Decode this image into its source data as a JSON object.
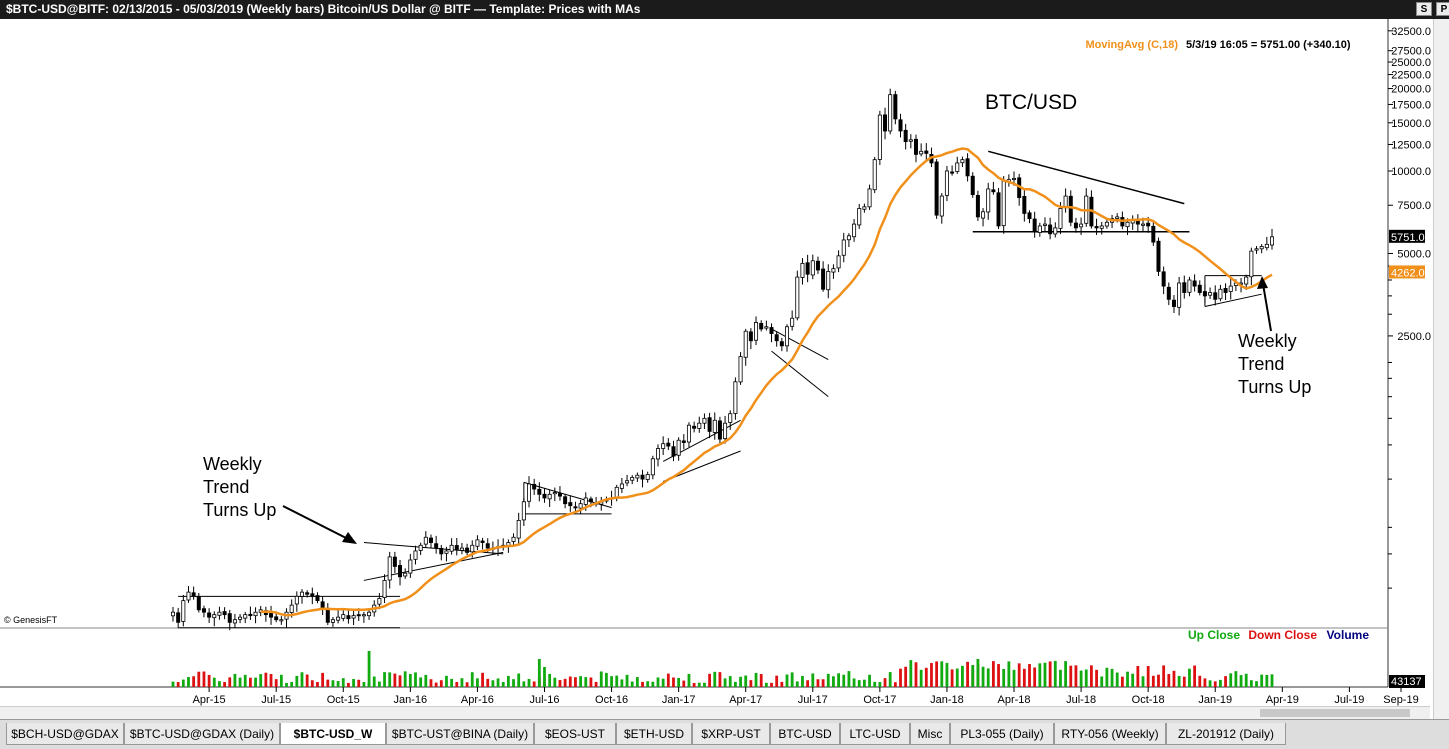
{
  "window": {
    "title": "$BTC-USD@BITF:  02/13/2015 - 05/03/2019  (Weekly bars)   Bitcoin/US Dollar @ BITF  —  Template: Prices with MAs",
    "btn_s": "S",
    "btn_p": "P"
  },
  "chart_data": {
    "type": "candlestick",
    "symbol_label": "BTC/USD",
    "scale": "log",
    "ylim": [
      220,
      35000
    ],
    "y_ticks": [
      32500,
      27500,
      25000,
      22500,
      20000,
      17500,
      15000,
      12500,
      10000,
      7500,
      5000,
      2500
    ],
    "y_tick_labels": [
      "32500.0",
      "27500.0",
      "25000.0",
      "22500.0",
      "20000.0",
      "17500.0",
      "15000.0",
      "12500.0",
      "10000.0",
      "7500.0",
      "5000.0",
      "2500.0"
    ],
    "x_tick_labels": [
      "Apr-15",
      "Jul-15",
      "Oct-15",
      "Jan-16",
      "Apr-16",
      "Jul-16",
      "Oct-16",
      "Jan-17",
      "Apr-17",
      "Jul-17",
      "Oct-17",
      "Jan-18",
      "Apr-18",
      "Jul-18",
      "Oct-18",
      "Jan-19",
      "Apr-19",
      "Jul-19",
      "Sep-19"
    ],
    "ma_legend": "MovingAvg (C,18)",
    "last_info": "5/3/19 16:05 = 5751.00 (+340.10)",
    "last_price": "5751.00",
    "ma_value": "4262.02",
    "volume_value": "43137",
    "volume_legend": [
      "Up Close",
      "Down Close",
      "Volume"
    ],
    "close_series": [
      245,
      225,
      270,
      290,
      280,
      250,
      245,
      235,
      240,
      245,
      240,
      225,
      230,
      235,
      240,
      238,
      245,
      250,
      240,
      235,
      230,
      230,
      245,
      260,
      280,
      290,
      285,
      280,
      270,
      255,
      225,
      230,
      235,
      240,
      232,
      238,
      240,
      240,
      245,
      260,
      275,
      320,
      390,
      360,
      330,
      340,
      380,
      410,
      430,
      460,
      440,
      420,
      400,
      410,
      430,
      415,
      420,
      405,
      430,
      450,
      440,
      420,
      420,
      425,
      430,
      440,
      460,
      530,
      620,
      720,
      690,
      660,
      640,
      660,
      670,
      650,
      610,
      600,
      590,
      610,
      640,
      620,
      610,
      620,
      630,
      640,
      700,
      720,
      740,
      760,
      775,
      750,
      780,
      890,
      970,
      1010,
      990,
      910,
      1040,
      1020,
      1180,
      1150,
      1200,
      1250,
      1120,
      1230,
      1050,
      1200,
      1300,
      1700,
      2100,
      2600,
      2400,
      2800,
      2650,
      2700,
      2550,
      2400,
      2300,
      2700,
      2900,
      4100,
      4600,
      4200,
      4700,
      4350,
      3700,
      4300,
      4400,
      4900,
      5600,
      5800,
      6400,
      7300,
      7400,
      8600,
      11000,
      16000,
      14000,
      19000,
      15500,
      14000,
      12800,
      13000,
      11500,
      11800,
      11600,
      10700,
      6900,
      8100,
      10000,
      9900,
      10700,
      11000,
      9600,
      8200,
      6800,
      7100,
      8600,
      8400,
      6300,
      9200,
      9300,
      9400,
      8000,
      7000,
      6700,
      6000,
      6300,
      6400,
      5900,
      6200,
      7300,
      8100,
      6500,
      6200,
      6400,
      8100,
      6300,
      6200,
      6300,
      6500,
      6700,
      6800,
      6300,
      6500,
      6600,
      6400,
      6400,
      6300,
      5500,
      4300,
      3800,
      3400,
      3200,
      3900,
      3600,
      4000,
      3800,
      3600,
      3500,
      3600,
      3400,
      3700,
      3600,
      3800,
      3900,
      3900,
      4100,
      5100,
      5200,
      5300,
      5400,
      5751
    ],
    "ma_period": 18,
    "annotations": [
      {
        "text": "Weekly\nTrend\nTurns Up"
      },
      {
        "text": "Weekly\nTrend\nTurns Up"
      }
    ],
    "credit": "© GenesisFT"
  },
  "colors": {
    "up": "#11aa11",
    "down": "#dd1111",
    "volume_label": "#000080",
    "ma": "#f0901a",
    "last_bg": "#000000",
    "ma_bg": "#f0901a"
  },
  "tabs": [
    "$BCH-USD@GDAX",
    "$BTC-USD@GDAX (Daily)",
    "$BTC-USD_W",
    "$BTC-UST@BINA (Daily)",
    "$EOS-UST",
    "$ETH-USD",
    "$XRP-UST",
    "BTC-USD",
    "LTC-USD",
    "Misc",
    "PL3-055 (Daily)",
    "RTY-056 (Weekly)",
    "ZL-201912 (Daily)"
  ],
  "active_tab": 2
}
